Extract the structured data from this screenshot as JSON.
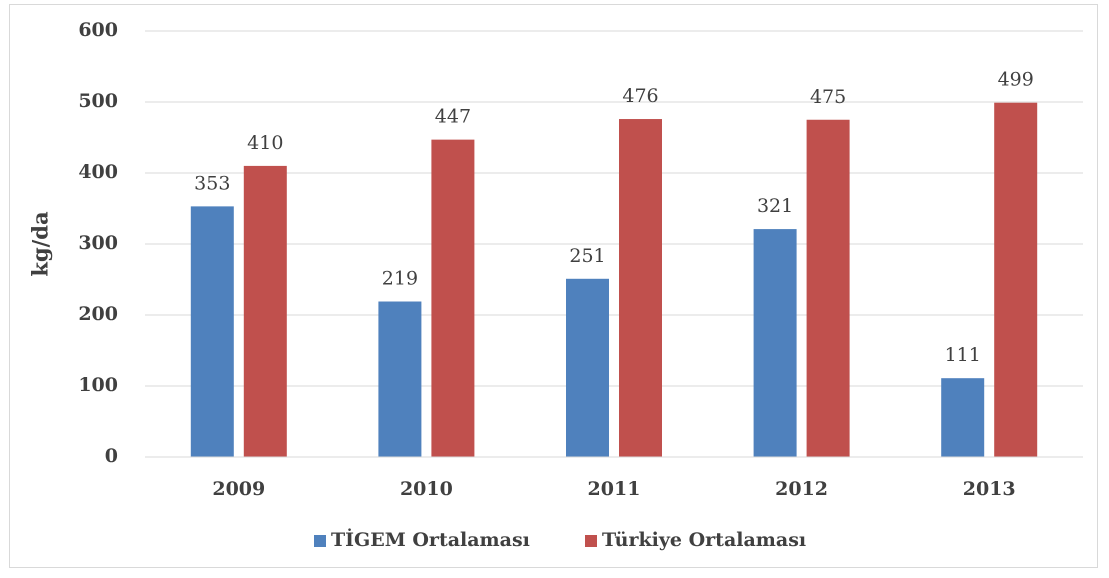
{
  "chart_data": {
    "type": "bar",
    "y_label": "kg/da",
    "categories": [
      "2009",
      "2010",
      "2011",
      "2012",
      "2013"
    ],
    "series": [
      {
        "name": "TİGEM Ortalaması",
        "color": "#4f81bd",
        "values": [
          353,
          219,
          251,
          321,
          111
        ]
      },
      {
        "name": "Türkiye Ortalaması",
        "color": "#c0504d",
        "values": [
          410,
          447,
          476,
          475,
          499
        ]
      }
    ],
    "ylim": [
      0,
      600
    ],
    "yticks": [
      0,
      100,
      200,
      300,
      400,
      500,
      600
    ],
    "grid": true,
    "legend": "bottom"
  }
}
